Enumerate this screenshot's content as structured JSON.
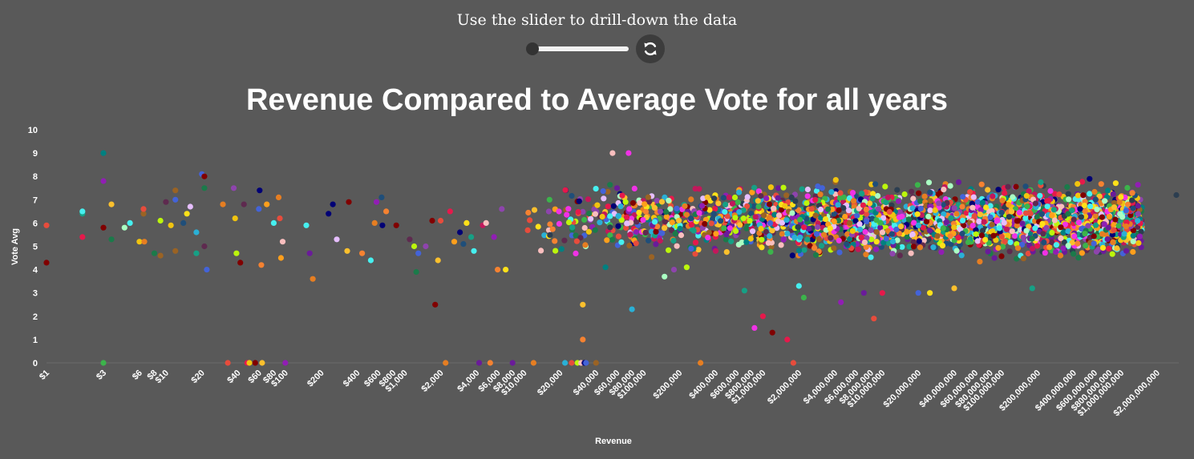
{
  "header": {
    "instruction": "Use the slider to drill-down the data"
  },
  "controls": {
    "slider_value": 0,
    "reset_icon": "refresh-icon"
  },
  "colors": {
    "background": "#595959",
    "palette": [
      "#e6194b",
      "#3cb44b",
      "#ffe119",
      "#4363d8",
      "#f58231",
      "#911eb4",
      "#46f0f0",
      "#f032e6",
      "#bcf60c",
      "#fabebe",
      "#008080",
      "#e6beff",
      "#9a6324",
      "#800000",
      "#aaffc3",
      "#000075",
      "#2ab0d6",
      "#ff9f1c",
      "#6a1b9a",
      "#c2185b",
      "#fbc02d",
      "#1b7a4a",
      "#8e44ad",
      "#e74c3c",
      "#f1c40f",
      "#16a085",
      "#e67e22",
      "#2c3e50",
      "#5e2a4f",
      "#1f4e79"
    ]
  },
  "chart_data": {
    "type": "scatter",
    "title": "Revenue Compared to Average Vote for all years",
    "xlabel": "Revenue",
    "ylabel": "Vote Avg",
    "x_scale": "log",
    "xlim": [
      1,
      2900000000
    ],
    "ylim": [
      0,
      10
    ],
    "y_ticks": [
      "0",
      "1",
      "2",
      "3",
      "4",
      "5",
      "6",
      "7",
      "8",
      "9",
      "10"
    ],
    "x_ticks": [
      {
        "value": 1,
        "label": "$1"
      },
      {
        "value": 3,
        "label": "$3"
      },
      {
        "value": 6,
        "label": "$6"
      },
      {
        "value": 8,
        "label": "$8"
      },
      {
        "value": 10,
        "label": "$10"
      },
      {
        "value": 20,
        "label": "$20"
      },
      {
        "value": 40,
        "label": "$40"
      },
      {
        "value": 60,
        "label": "$60"
      },
      {
        "value": 80,
        "label": "$80"
      },
      {
        "value": 100,
        "label": "$100"
      },
      {
        "value": 200,
        "label": "$200"
      },
      {
        "value": 400,
        "label": "$400"
      },
      {
        "value": 600,
        "label": "$600"
      },
      {
        "value": 800,
        "label": "$800"
      },
      {
        "value": 1000,
        "label": "$1,000"
      },
      {
        "value": 2000,
        "label": "$2,000"
      },
      {
        "value": 4000,
        "label": "$4,000"
      },
      {
        "value": 6000,
        "label": "$6,000"
      },
      {
        "value": 8000,
        "label": "$8,000"
      },
      {
        "value": 10000,
        "label": "$10,000"
      },
      {
        "value": 20000,
        "label": "$20,000"
      },
      {
        "value": 40000,
        "label": "$40,000"
      },
      {
        "value": 60000,
        "label": "$60,000"
      },
      {
        "value": 80000,
        "label": "$80,000"
      },
      {
        "value": 100000,
        "label": "$100,000"
      },
      {
        "value": 200000,
        "label": "$200,000"
      },
      {
        "value": 400000,
        "label": "$400,000"
      },
      {
        "value": 600000,
        "label": "$600,000"
      },
      {
        "value": 800000,
        "label": "$800,000"
      },
      {
        "value": 1000000,
        "label": "$1,000,000"
      },
      {
        "value": 2000000,
        "label": "$2,000,000"
      },
      {
        "value": 4000000,
        "label": "$4,000,000"
      },
      {
        "value": 6000000,
        "label": "$6,000,000"
      },
      {
        "value": 8000000,
        "label": "$8,000,000"
      },
      {
        "value": 10000000,
        "label": "$10,000,000"
      },
      {
        "value": 20000000,
        "label": "$20,000,000"
      },
      {
        "value": 40000000,
        "label": "$40,000,000"
      },
      {
        "value": 60000000,
        "label": "$60,000,000"
      },
      {
        "value": 80000000,
        "label": "$80,000,000"
      },
      {
        "value": 100000000,
        "label": "$100,000,000"
      },
      {
        "value": 200000000,
        "label": "$200,000,000"
      },
      {
        "value": 400000000,
        "label": "$400,000,000"
      },
      {
        "value": 600000000,
        "label": "$600,000,000"
      },
      {
        "value": 800000000,
        "label": "$800,000,000"
      },
      {
        "value": 1000000000,
        "label": "$1,000,000,000"
      },
      {
        "value": 2000000000,
        "label": "$2,000,000,000"
      }
    ],
    "grid": false,
    "sparse_points": [
      [
        1,
        5.9
      ],
      [
        1,
        4.3
      ],
      [
        2,
        6.4
      ],
      [
        2,
        6.5
      ],
      [
        2,
        5.4
      ],
      [
        3,
        9.0
      ],
      [
        3,
        7.8
      ],
      [
        3,
        5.8
      ],
      [
        3,
        0
      ],
      [
        3.5,
        5.3
      ],
      [
        3.5,
        6.8
      ],
      [
        4.5,
        5.8
      ],
      [
        5,
        6.0
      ],
      [
        6,
        5.2
      ],
      [
        6.5,
        6.4
      ],
      [
        6.5,
        6.6
      ],
      [
        6.6,
        5.2
      ],
      [
        8,
        4.7
      ],
      [
        9,
        6.1
      ],
      [
        9,
        4.6
      ],
      [
        10,
        6.9
      ],
      [
        11,
        5.9
      ],
      [
        12,
        7.0
      ],
      [
        12,
        7.4
      ],
      [
        12,
        4.8
      ],
      [
        14,
        6.0
      ],
      [
        15,
        6.4
      ],
      [
        16,
        6.7
      ],
      [
        18,
        5.6
      ],
      [
        18,
        4.7
      ],
      [
        20,
        8.1
      ],
      [
        21,
        5.0
      ],
      [
        21,
        7.5
      ],
      [
        21,
        8.0
      ],
      [
        22,
        4.0
      ],
      [
        30,
        6.8
      ],
      [
        33,
        0
      ],
      [
        37,
        7.5
      ],
      [
        38,
        6.2
      ],
      [
        39,
        4.7
      ],
      [
        42,
        4.3
      ],
      [
        45,
        6.8
      ],
      [
        48,
        0
      ],
      [
        50,
        0
      ],
      [
        56,
        0
      ],
      [
        60,
        6.6
      ],
      [
        61,
        7.4
      ],
      [
        63,
        4.2
      ],
      [
        64,
        0
      ],
      [
        70,
        6.8
      ],
      [
        80,
        6.0
      ],
      [
        88,
        7.1
      ],
      [
        90,
        6.2
      ],
      [
        92,
        4.5
      ],
      [
        95,
        5.2
      ],
      [
        100,
        0
      ],
      [
        150,
        5.9
      ],
      [
        160,
        4.7
      ],
      [
        170,
        3.6
      ],
      [
        230,
        6.4
      ],
      [
        250,
        6.8
      ],
      [
        270,
        5.3
      ],
      [
        330,
        4.8
      ],
      [
        340,
        6.9
      ],
      [
        440,
        4.7
      ],
      [
        520,
        4.4
      ],
      [
        560,
        6.0
      ],
      [
        580,
        6.9
      ],
      [
        640,
        7.1
      ],
      [
        650,
        5.9
      ],
      [
        700,
        6.5
      ],
      [
        850,
        5.9
      ],
      [
        1100,
        5.3
      ],
      [
        1200,
        5.0
      ],
      [
        1250,
        3.9
      ],
      [
        1300,
        4.7
      ],
      [
        1500,
        5.0
      ],
      [
        1700,
        6.1
      ],
      [
        1800,
        2.5
      ],
      [
        1900,
        4.4
      ],
      [
        2000,
        6.1
      ],
      [
        2200,
        0
      ],
      [
        2400,
        6.5
      ],
      [
        2600,
        5.2
      ],
      [
        2900,
        5.6
      ],
      [
        3100,
        5.1
      ],
      [
        3300,
        6.0
      ],
      [
        3600,
        5.4
      ],
      [
        3800,
        4.8
      ],
      [
        4200,
        0
      ],
      [
        4500,
        5.9
      ],
      [
        4800,
        6.0
      ],
      [
        5200,
        0
      ],
      [
        5600,
        5.4
      ],
      [
        6000,
        4.0
      ],
      [
        6500,
        6.6
      ],
      [
        7000,
        4.0
      ],
      [
        8000,
        0
      ],
      [
        12000,
        0
      ],
      [
        22000,
        0
      ],
      [
        25000,
        0
      ],
      [
        28000,
        0
      ],
      [
        30000,
        0
      ],
      [
        31000,
        1.0
      ],
      [
        31000,
        2.5
      ],
      [
        32000,
        0
      ],
      [
        33000,
        0
      ],
      [
        40000,
        0
      ],
      [
        48000,
        4.1
      ],
      [
        55000,
        9.0
      ],
      [
        60000,
        7.5
      ],
      [
        75000,
        9.0
      ],
      [
        80000,
        2.3
      ],
      [
        150000,
        3.7
      ],
      [
        180000,
        4.0
      ],
      [
        230000,
        4.1
      ],
      [
        300000,
        0
      ],
      [
        700000,
        3.1
      ],
      [
        850000,
        1.5
      ],
      [
        1000000,
        2.0
      ],
      [
        1200000,
        1.3
      ],
      [
        1600000,
        1.0
      ],
      [
        1800000,
        0
      ],
      [
        2000000,
        3.3
      ],
      [
        2200000,
        2.8
      ],
      [
        4500000,
        2.6
      ],
      [
        7000000,
        3.0
      ],
      [
        8500000,
        1.9
      ],
      [
        10000000,
        3.0
      ],
      [
        20000000,
        3.0
      ],
      [
        25000000,
        3.0
      ],
      [
        40000000,
        3.2
      ],
      [
        180000000,
        3.2
      ],
      [
        2900000000,
        7.2
      ]
    ],
    "dense_cloud": {
      "x_range": [
        10000,
        1500000000
      ],
      "y_center": 6.1,
      "y_spread": 1.9,
      "approx_points": 2800
    }
  }
}
